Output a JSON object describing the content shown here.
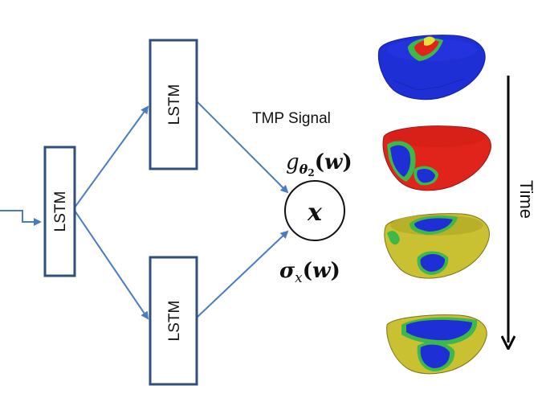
{
  "nodes": {
    "lstm_input": {
      "label": "LSTM"
    },
    "lstm_top": {
      "label": "LSTM"
    },
    "lstm_bottom": {
      "label": "LSTM"
    },
    "output": {
      "label": "x"
    }
  },
  "labels": {
    "tmp_signal": "TMP Signal",
    "g_theta": {
      "g": "g",
      "theta": "θ",
      "two": "2",
      "w": "w"
    },
    "sigma_x": {
      "sigma": "σ",
      "x": "x",
      "w": "w"
    },
    "open_paren": "(",
    "close_paren": ")",
    "time": "Time"
  },
  "colors": {
    "box_border": "#2f4f7f",
    "arrow": "#4a7cc4",
    "heart_blue": "#1f2fd6",
    "heart_red": "#e0241c",
    "heart_yellow": "#c9c032",
    "heart_green": "#3fb84a"
  },
  "heart_frames": [
    "frame-1",
    "frame-2",
    "frame-3",
    "frame-4"
  ]
}
